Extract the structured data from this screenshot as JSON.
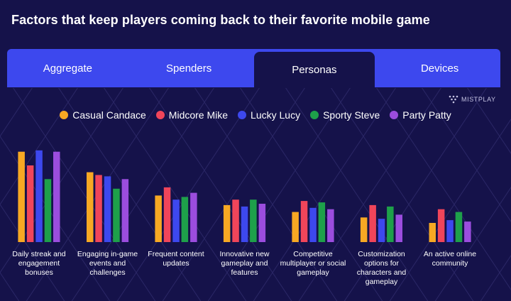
{
  "title": "Factors that keep players coming back to their favorite mobile game",
  "tabs": [
    {
      "label": "Aggregate",
      "active": false
    },
    {
      "label": "Spenders",
      "active": false
    },
    {
      "label": "Personas",
      "active": true
    },
    {
      "label": "Devices",
      "active": false
    }
  ],
  "brand": "MISTPLAY",
  "colors": {
    "background": "#15124a",
    "tab_bar": "#3d48ee"
  },
  "chart_data": {
    "type": "bar",
    "categories": [
      "Daily streak and engagement bonuses",
      "Engaging in-game events and challenges",
      "Frequent content updates",
      "Innovative new gameplay and features",
      "Competitive multiplayer or social gameplay",
      "Customization options for characters and gameplay",
      "An active online community"
    ],
    "series": [
      {
        "name": "Casual Candace",
        "color": "#f7a823",
        "values": [
          66,
          51,
          34,
          27,
          22,
          18,
          14
        ]
      },
      {
        "name": "Midcore Mike",
        "color": "#f0455a",
        "values": [
          56,
          49,
          40,
          31,
          30,
          27,
          24
        ]
      },
      {
        "name": "Lucky Lucy",
        "color": "#3d48ee",
        "values": [
          67,
          48,
          31,
          26,
          25,
          17,
          16
        ]
      },
      {
        "name": "Sporty Steve",
        "color": "#1ea04a",
        "values": [
          46,
          39,
          33,
          31,
          29,
          26,
          22
        ]
      },
      {
        "name": "Party Patty",
        "color": "#9b4dde",
        "values": [
          66,
          46,
          36,
          28,
          24,
          20,
          15
        ]
      }
    ],
    "ylim": [
      0,
      70
    ],
    "grid": false,
    "legend_position": "top"
  }
}
